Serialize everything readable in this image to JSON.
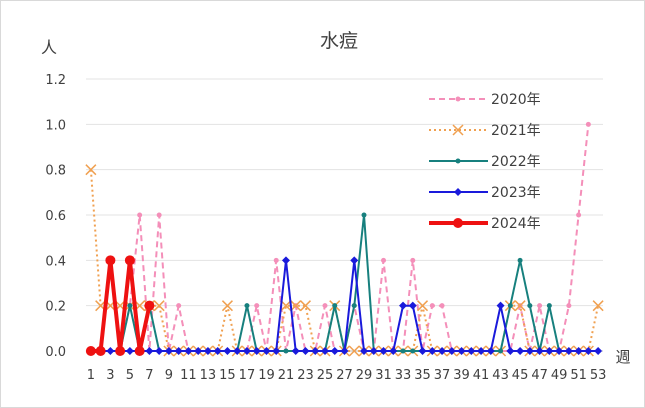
{
  "chart_data": {
    "type": "line",
    "title": "水痘",
    "ylabel": "人",
    "xlabel": "週",
    "ylim": [
      0,
      1.2
    ],
    "yticks": [
      "0.0",
      "0.2",
      "0.4",
      "0.6",
      "0.8",
      "1.0",
      "1.2"
    ],
    "x": [
      1,
      2,
      3,
      4,
      5,
      6,
      7,
      8,
      9,
      10,
      11,
      12,
      13,
      14,
      15,
      16,
      17,
      18,
      19,
      20,
      21,
      22,
      23,
      24,
      25,
      26,
      27,
      28,
      29,
      30,
      31,
      32,
      33,
      34,
      35,
      36,
      37,
      38,
      39,
      40,
      41,
      42,
      43,
      44,
      45,
      46,
      47,
      48,
      49,
      50,
      51,
      52,
      53
    ],
    "xticks": [
      1,
      3,
      5,
      7,
      9,
      11,
      13,
      15,
      17,
      19,
      21,
      23,
      25,
      27,
      29,
      31,
      33,
      35,
      37,
      39,
      41,
      43,
      45,
      47,
      49,
      51,
      53
    ],
    "grid": true,
    "legend_position": "right",
    "series": [
      {
        "name": "2020年",
        "color": "#f48fb9",
        "style": "dashed",
        "marker": "dot",
        "values": [
          0,
          0,
          0.4,
          0,
          0.2,
          0.6,
          0,
          0.6,
          0,
          0.2,
          0,
          0,
          0,
          0,
          0,
          0,
          0,
          0.2,
          0,
          0.4,
          0,
          0.2,
          0,
          0,
          0.2,
          0,
          0,
          0.2,
          0,
          0,
          0.4,
          0,
          0,
          0.4,
          0,
          0.2,
          0.2,
          0,
          0,
          0,
          0,
          0,
          0,
          0,
          0.2,
          0,
          0.2,
          0,
          0,
          0.2,
          0.6,
          1.0,
          null
        ]
      },
      {
        "name": "2021年",
        "color": "#f0a050",
        "style": "dotted",
        "marker": "x",
        "values": [
          0.8,
          0.2,
          0.2,
          0.2,
          0.2,
          0.2,
          0.2,
          0.2,
          0,
          0,
          0,
          0,
          0,
          0,
          0.2,
          0,
          0,
          0,
          0,
          0,
          0.2,
          0.2,
          0.2,
          0,
          0,
          0.2,
          0,
          0,
          0,
          0,
          0,
          0,
          0,
          0,
          0.2,
          0,
          0,
          0,
          0,
          0,
          0,
          0,
          0,
          0.2,
          0.2,
          0,
          0,
          0,
          0,
          0,
          0,
          0,
          0.2
        ]
      },
      {
        "name": "2022年",
        "color": "#17807e",
        "style": "solid",
        "marker": "dot",
        "values": [
          0,
          0,
          0,
          0,
          0.2,
          0,
          0.2,
          0,
          0,
          0,
          0,
          0,
          0,
          0,
          0,
          0,
          0.2,
          0,
          0,
          0,
          0,
          0,
          0,
          0,
          0,
          0.2,
          0,
          0.2,
          0.6,
          0,
          0,
          0,
          0,
          0,
          0,
          0,
          0,
          0,
          0,
          0,
          0,
          0,
          0,
          0.2,
          0.4,
          0.2,
          0,
          0.2,
          0,
          0,
          0,
          0,
          null
        ]
      },
      {
        "name": "2023年",
        "color": "#1a1adb",
        "style": "solid",
        "marker": "diamond",
        "values": [
          0,
          0,
          0,
          0,
          0,
          0,
          0,
          0,
          0,
          0,
          0,
          0,
          0,
          0,
          0,
          0,
          0,
          0,
          0,
          0,
          0.4,
          0,
          0,
          0,
          0,
          0,
          0,
          0.4,
          0,
          0,
          0,
          0,
          0.2,
          0.2,
          0,
          0,
          0,
          0,
          0,
          0,
          0,
          0,
          0.2,
          0,
          0,
          0,
          0,
          0,
          0,
          0,
          0,
          0,
          0
        ]
      },
      {
        "name": "2024年",
        "color": "#ee1111",
        "style": "solid-thick",
        "marker": "dot",
        "values": [
          0,
          0,
          0.4,
          0,
          0.4,
          0,
          0.2,
          null,
          null,
          null,
          null,
          null,
          null,
          null,
          null,
          null,
          null,
          null,
          null,
          null,
          null,
          null,
          null,
          null,
          null,
          null,
          null,
          null,
          null,
          null,
          null,
          null,
          null,
          null,
          null,
          null,
          null,
          null,
          null,
          null,
          null,
          null,
          null,
          null,
          null,
          null,
          null,
          null,
          null,
          null,
          null,
          null,
          null
        ]
      }
    ]
  }
}
